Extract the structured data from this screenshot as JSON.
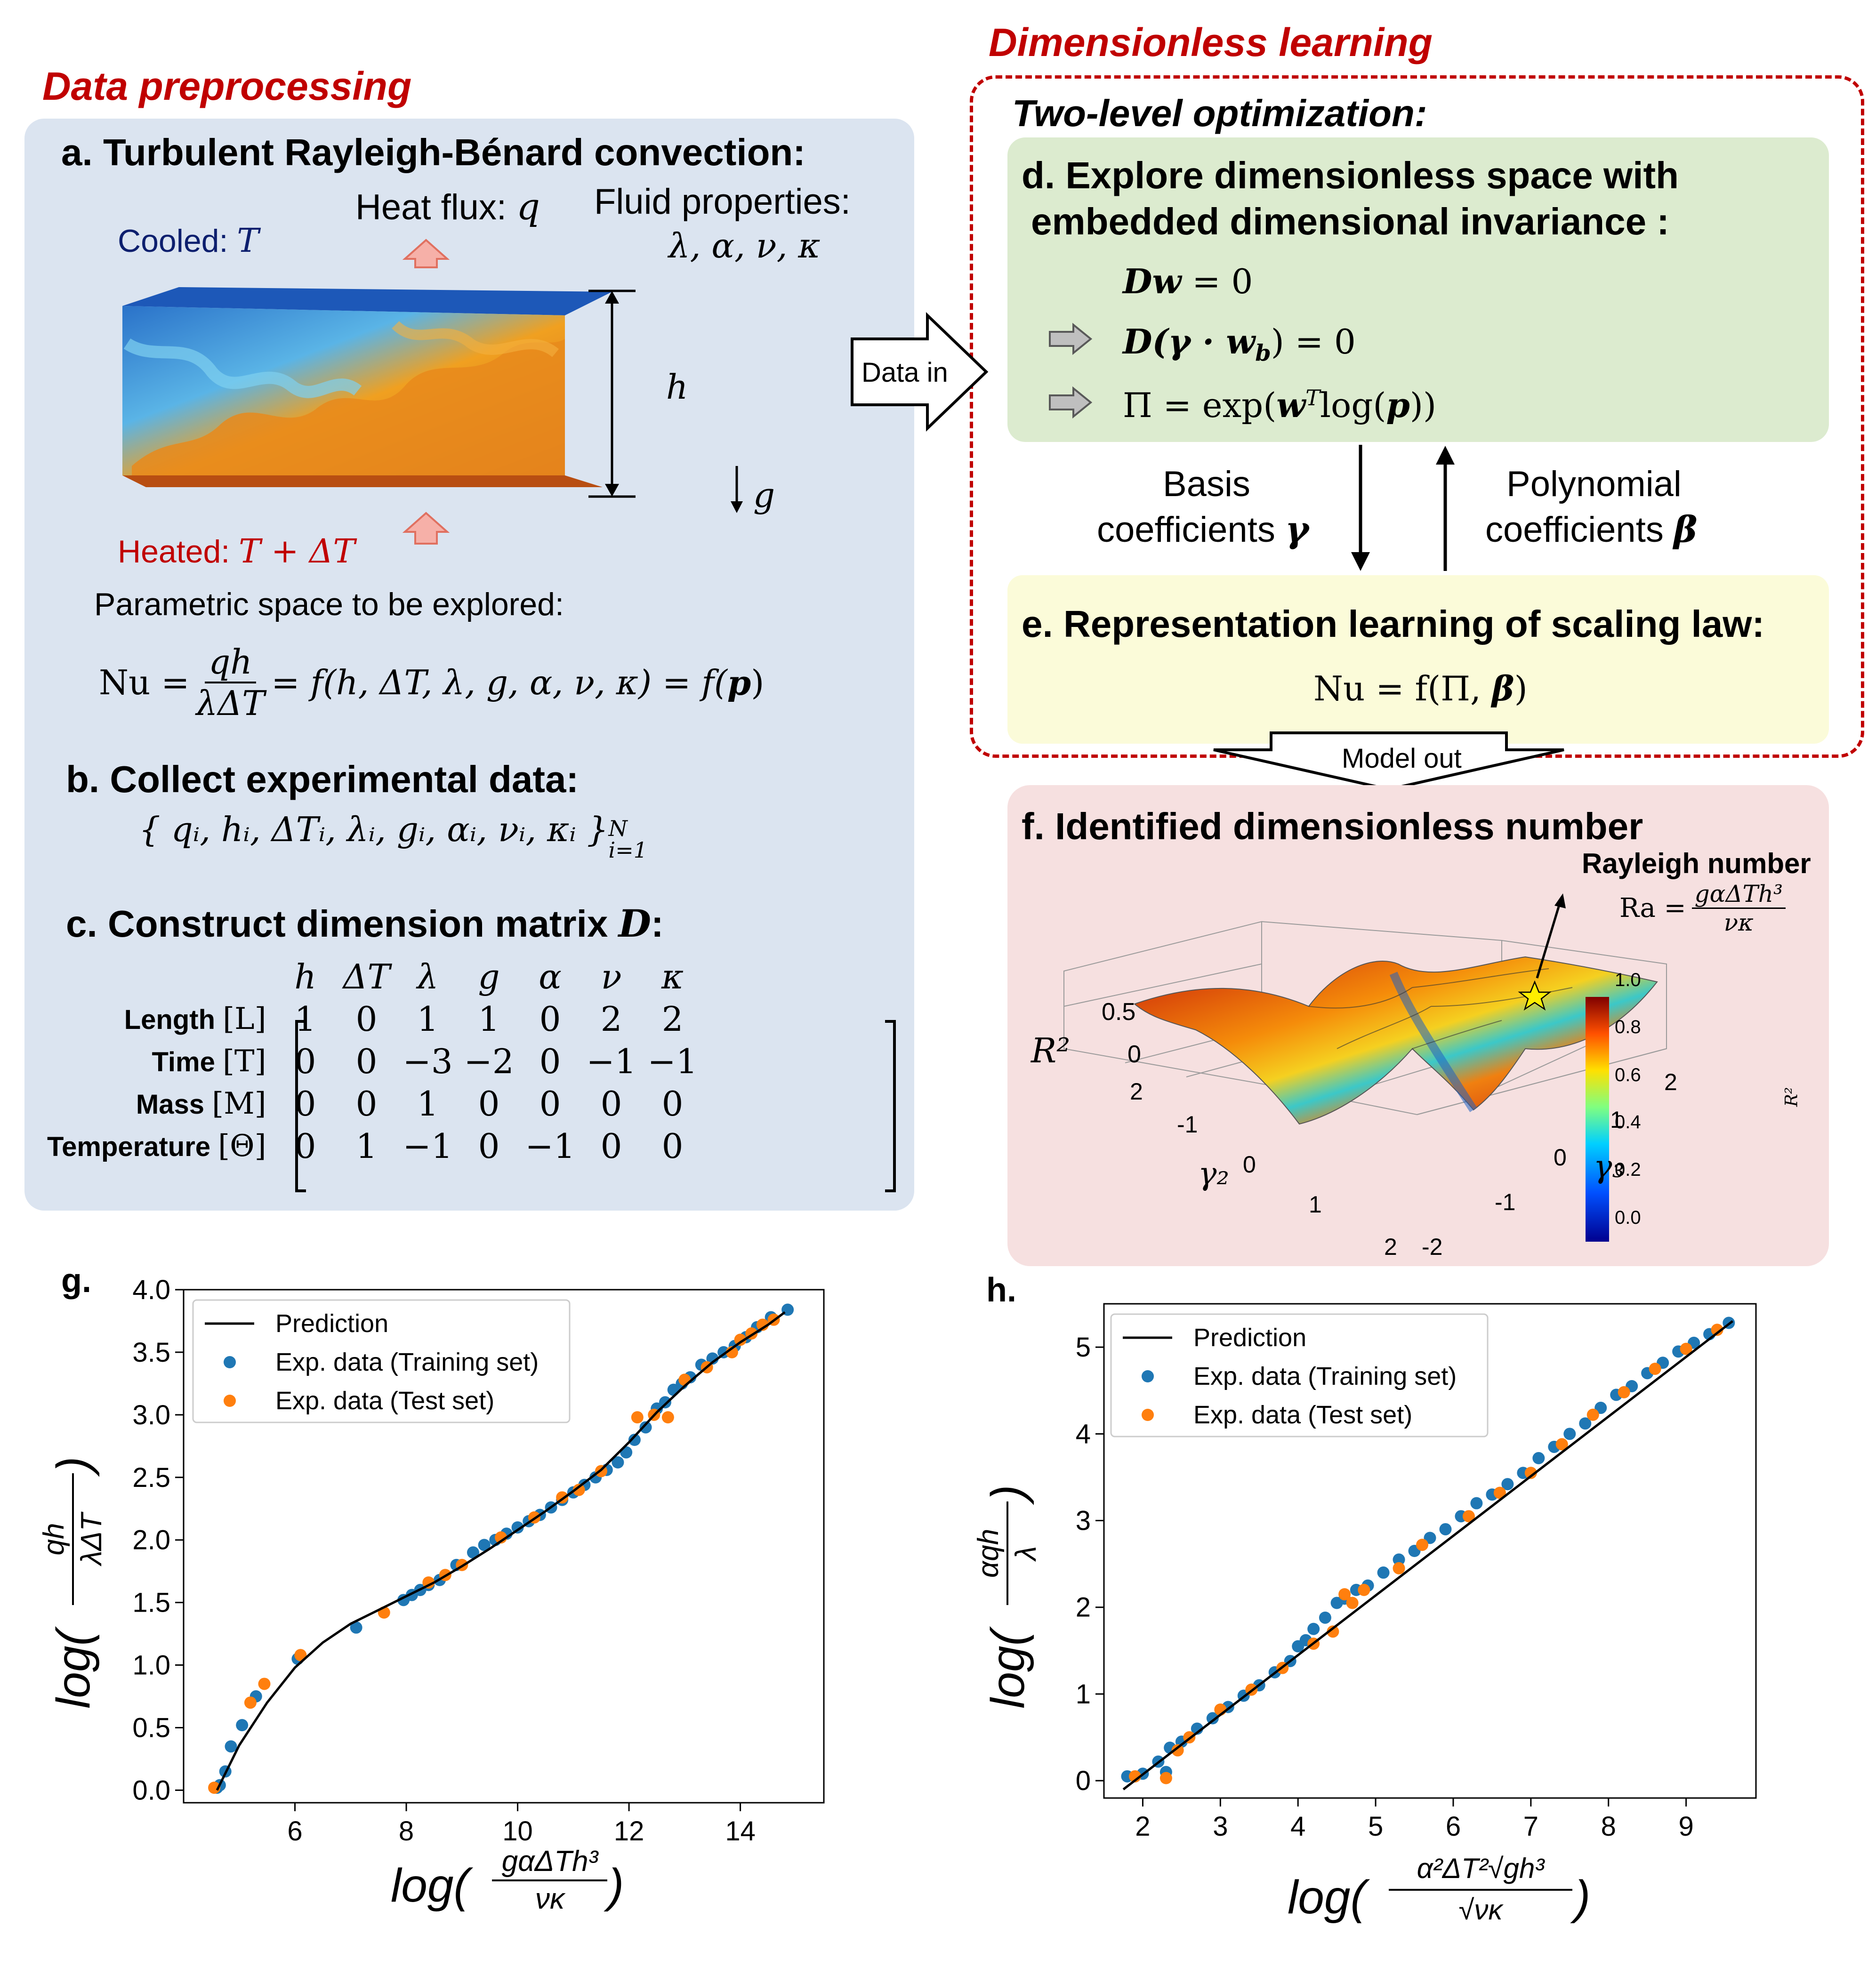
{
  "sections": {
    "preprocessing": "Data preprocessing",
    "learning": "Dimensionless learning"
  },
  "panel_a": {
    "title": "a. Turbulent Rayleigh-Bénard convection:",
    "heat_flux_label": "Heat flux: ",
    "heat_flux_sym": "q",
    "fluid_label": "Fluid properties:",
    "fluid_syms": "λ, α, ν, κ",
    "cooled_label": "Cooled: ",
    "cooled_sym": "T",
    "heated_label": "Heated: ",
    "heated_sym": "T + ΔT",
    "height_sym": "h",
    "gravity_sym": "g",
    "parametric_text": "Parametric space to be explored:",
    "nu_lhs": "Nu =",
    "nu_num": "qh",
    "nu_den": "λΔT",
    "nu_rhs": "= f(h, ΔT, λ, g, α, ν, κ) = f(",
    "nu_p": "p",
    "nu_close": ")"
  },
  "panel_b": {
    "title": "b. Collect experimental data:",
    "set": "{ qᵢ, hᵢ, ΔTᵢ, λᵢ, gᵢ, αᵢ, νᵢ, κᵢ }",
    "set_sup": "N",
    "set_sub": "i=1"
  },
  "panel_c": {
    "title": "c. Construct dimension matrix ",
    "title_sym": "D",
    "title_end": ":",
    "columns": [
      "h",
      "ΔT",
      "λ",
      "g",
      "α",
      "ν",
      "κ"
    ],
    "rows": [
      {
        "name": "Length",
        "unit": "[L]",
        "values": [
          "1",
          "0",
          "1",
          "1",
          "0",
          "2",
          "2"
        ]
      },
      {
        "name": "Time",
        "unit": "[T]",
        "values": [
          "0",
          "0",
          "−3",
          "−2",
          "0",
          "−1",
          "−1"
        ]
      },
      {
        "name": "Mass",
        "unit": "[M]",
        "values": [
          "0",
          "0",
          "1",
          "0",
          "0",
          "0",
          "0"
        ]
      },
      {
        "name": "Temperature",
        "unit": "[Θ]",
        "values": [
          "0",
          "1",
          "−1",
          "0",
          "−1",
          "0",
          "0"
        ]
      }
    ]
  },
  "flow": {
    "data_in": "Data in",
    "model_out": "Model out"
  },
  "two_level": "Two-level optimization:",
  "panel_d": {
    "title1": "d. Explore dimensionless space with",
    "title2": "embedded dimensional invariance :",
    "eq1_bold": "Dw",
    "eq1_rest": " = 0",
    "eq2_bold": "D(γ · w",
    "eq2_sub": "b",
    "eq2_rest": ") = 0",
    "eq3_a": "Π = exp(",
    "eq3_w": "w",
    "eq3_sup": "T",
    "eq3_b": "log(",
    "eq3_p": "p",
    "eq3_c": "))"
  },
  "links": {
    "basis_1": "Basis",
    "basis_2": "coefficients ",
    "basis_sym": "γ",
    "poly_1": "Polynomial",
    "poly_2": "coefficients ",
    "poly_sym": "β"
  },
  "panel_e": {
    "title": "e. Representation learning of scaling law:",
    "eq": "Nu = f(Π, ",
    "eq_b": "β",
    "eq_end": ")"
  },
  "panel_f": {
    "title": "f. Identified dimensionless number",
    "callout": "Rayleigh number",
    "ra_lhs": "Ra =",
    "ra_num": "gαΔTh³",
    "ra_den": "νκ",
    "zlabel": "R²",
    "z_ticks": [
      "0.5",
      "0"
    ],
    "g2_label": "γ₂",
    "g2_ticks": [
      "2",
      "-1",
      "0",
      "1",
      "2"
    ],
    "g3_label": "γ₃",
    "g3_ticks": [
      "2",
      "1",
      "0",
      "-1",
      "-2"
    ],
    "colorbar_ticks": [
      "1.0",
      "0.8",
      "0.6",
      "0.4",
      "0.2",
      "0.0"
    ],
    "colorbar_label": "R²"
  },
  "colors": {
    "section_red": "#c00000",
    "training": "#1f77b4",
    "test": "#ff7f0e",
    "panel_a_bg": "#dbe4f0",
    "panel_d_bg": "#dcebcf",
    "panel_e_bg": "#fbfbd9",
    "panel_f_bg": "#f6e0e0"
  },
  "chart_data": [
    {
      "type": "scatter",
      "panel": "g.",
      "xlabel": "log(gαΔTh³/νκ)",
      "ylabel": "log(qh/λΔT)",
      "xlim": [
        4.0,
        15.5
      ],
      "ylim": [
        -0.1,
        4.0
      ],
      "xticks": [
        6,
        8,
        10,
        12,
        14
      ],
      "yticks": [
        0.0,
        0.5,
        1.0,
        1.5,
        2.0,
        2.5,
        3.0,
        3.5,
        4.0
      ],
      "legend": [
        "Prediction",
        "Exp. data (Training set)",
        "Exp. data (Test set)"
      ],
      "legend_position": "top-left",
      "prediction": [
        [
          4.6,
          0.0
        ],
        [
          5.0,
          0.36
        ],
        [
          5.5,
          0.7
        ],
        [
          6.0,
          0.98
        ],
        [
          6.5,
          1.18
        ],
        [
          7.0,
          1.33
        ],
        [
          7.5,
          1.44
        ],
        [
          8.0,
          1.55
        ],
        [
          8.5,
          1.66
        ],
        [
          9.0,
          1.79
        ],
        [
          9.5,
          1.93
        ],
        [
          10.0,
          2.08
        ],
        [
          10.5,
          2.23
        ],
        [
          11.0,
          2.39
        ],
        [
          11.5,
          2.56
        ],
        [
          12.0,
          2.78
        ],
        [
          12.5,
          3.02
        ],
        [
          13.0,
          3.23
        ],
        [
          13.5,
          3.42
        ],
        [
          14.0,
          3.58
        ],
        [
          14.5,
          3.72
        ],
        [
          14.8,
          3.82
        ]
      ],
      "training": [
        [
          4.6,
          0.02
        ],
        [
          4.65,
          0.04
        ],
        [
          4.75,
          0.15
        ],
        [
          4.85,
          0.35
        ],
        [
          5.05,
          0.52
        ],
        [
          5.3,
          0.75
        ],
        [
          6.05,
          1.05
        ],
        [
          7.1,
          1.3
        ],
        [
          7.95,
          1.52
        ],
        [
          8.1,
          1.56
        ],
        [
          8.25,
          1.6
        ],
        [
          8.4,
          1.64
        ],
        [
          8.6,
          1.68
        ],
        [
          8.9,
          1.8
        ],
        [
          9.2,
          1.9
        ],
        [
          9.4,
          1.96
        ],
        [
          9.6,
          2.0
        ],
        [
          9.8,
          2.05
        ],
        [
          10.0,
          2.1
        ],
        [
          10.2,
          2.15
        ],
        [
          10.4,
          2.2
        ],
        [
          10.6,
          2.26
        ],
        [
          10.8,
          2.32
        ],
        [
          11.0,
          2.38
        ],
        [
          11.2,
          2.44
        ],
        [
          11.4,
          2.5
        ],
        [
          11.6,
          2.56
        ],
        [
          11.8,
          2.62
        ],
        [
          11.95,
          2.7
        ],
        [
          12.1,
          2.8
        ],
        [
          12.3,
          2.9
        ],
        [
          12.5,
          3.05
        ],
        [
          12.65,
          3.1
        ],
        [
          12.8,
          3.2
        ],
        [
          12.95,
          3.25
        ],
        [
          13.1,
          3.3
        ],
        [
          13.3,
          3.4
        ],
        [
          13.5,
          3.45
        ],
        [
          13.7,
          3.5
        ],
        [
          13.9,
          3.55
        ],
        [
          14.1,
          3.62
        ],
        [
          14.3,
          3.7
        ],
        [
          14.55,
          3.78
        ],
        [
          14.85,
          3.84
        ]
      ],
      "test": [
        [
          4.55,
          0.02
        ],
        [
          5.2,
          0.7
        ],
        [
          5.45,
          0.85
        ],
        [
          6.1,
          1.08
        ],
        [
          7.6,
          1.42
        ],
        [
          8.4,
          1.66
        ],
        [
          8.7,
          1.72
        ],
        [
          9.0,
          1.8
        ],
        [
          9.7,
          2.02
        ],
        [
          10.3,
          2.18
        ],
        [
          10.8,
          2.34
        ],
        [
          11.1,
          2.4
        ],
        [
          11.5,
          2.55
        ],
        [
          12.15,
          2.98
        ],
        [
          12.45,
          3.0
        ],
        [
          12.7,
          2.98
        ],
        [
          13.0,
          3.28
        ],
        [
          13.4,
          3.38
        ],
        [
          13.85,
          3.5
        ],
        [
          14.0,
          3.6
        ],
        [
          14.2,
          3.65
        ],
        [
          14.4,
          3.72
        ],
        [
          14.6,
          3.76
        ]
      ]
    },
    {
      "type": "scatter",
      "panel": "h.",
      "xlabel": "log(α²ΔT²√(gh³)/√(νκ))",
      "ylabel": "log(αqh/λ)",
      "xlim": [
        1.5,
        9.9
      ],
      "ylim": [
        -0.2,
        5.5
      ],
      "xticks": [
        2,
        3,
        4,
        5,
        6,
        7,
        8,
        9
      ],
      "yticks": [
        0,
        1,
        2,
        3,
        4,
        5
      ],
      "legend": [
        "Prediction",
        "Exp. data (Training set)",
        "Exp. data (Test set)"
      ],
      "legend_position": "top-left",
      "prediction": [
        [
          1.75,
          -0.1
        ],
        [
          9.6,
          5.3
        ]
      ],
      "training": [
        [
          1.8,
          0.05
        ],
        [
          2.0,
          0.08
        ],
        [
          2.2,
          0.22
        ],
        [
          2.3,
          0.1
        ],
        [
          2.35,
          0.38
        ],
        [
          2.5,
          0.45
        ],
        [
          2.7,
          0.6
        ],
        [
          2.9,
          0.72
        ],
        [
          3.1,
          0.85
        ],
        [
          3.3,
          0.98
        ],
        [
          3.5,
          1.1
        ],
        [
          3.7,
          1.25
        ],
        [
          3.9,
          1.38
        ],
        [
          4.0,
          1.55
        ],
        [
          4.1,
          1.62
        ],
        [
          4.2,
          1.75
        ],
        [
          4.35,
          1.88
        ],
        [
          4.5,
          2.05
        ],
        [
          4.6,
          2.1
        ],
        [
          4.75,
          2.2
        ],
        [
          4.9,
          2.25
        ],
        [
          5.1,
          2.4
        ],
        [
          5.3,
          2.55
        ],
        [
          5.5,
          2.65
        ],
        [
          5.7,
          2.8
        ],
        [
          5.9,
          2.9
        ],
        [
          6.1,
          3.05
        ],
        [
          6.3,
          3.2
        ],
        [
          6.5,
          3.3
        ],
        [
          6.7,
          3.42
        ],
        [
          6.9,
          3.55
        ],
        [
          7.1,
          3.72
        ],
        [
          7.3,
          3.85
        ],
        [
          7.5,
          4.0
        ],
        [
          7.7,
          4.12
        ],
        [
          7.9,
          4.3
        ],
        [
          8.1,
          4.45
        ],
        [
          8.3,
          4.55
        ],
        [
          8.5,
          4.7
        ],
        [
          8.7,
          4.82
        ],
        [
          8.9,
          4.95
        ],
        [
          9.1,
          5.05
        ],
        [
          9.3,
          5.15
        ],
        [
          9.55,
          5.28
        ]
      ],
      "test": [
        [
          1.9,
          0.05
        ],
        [
          2.3,
          0.03
        ],
        [
          2.45,
          0.35
        ],
        [
          2.6,
          0.5
        ],
        [
          3.0,
          0.82
        ],
        [
          3.4,
          1.05
        ],
        [
          3.8,
          1.3
        ],
        [
          4.2,
          1.58
        ],
        [
          4.45,
          1.72
        ],
        [
          4.6,
          2.15
        ],
        [
          4.7,
          2.05
        ],
        [
          4.85,
          2.2
        ],
        [
          5.3,
          2.45
        ],
        [
          5.6,
          2.72
        ],
        [
          6.2,
          3.05
        ],
        [
          6.6,
          3.32
        ],
        [
          7.0,
          3.55
        ],
        [
          7.4,
          3.88
        ],
        [
          7.8,
          4.22
        ],
        [
          8.2,
          4.48
        ],
        [
          8.6,
          4.75
        ],
        [
          9.0,
          4.98
        ],
        [
          9.4,
          5.2
        ]
      ]
    }
  ]
}
